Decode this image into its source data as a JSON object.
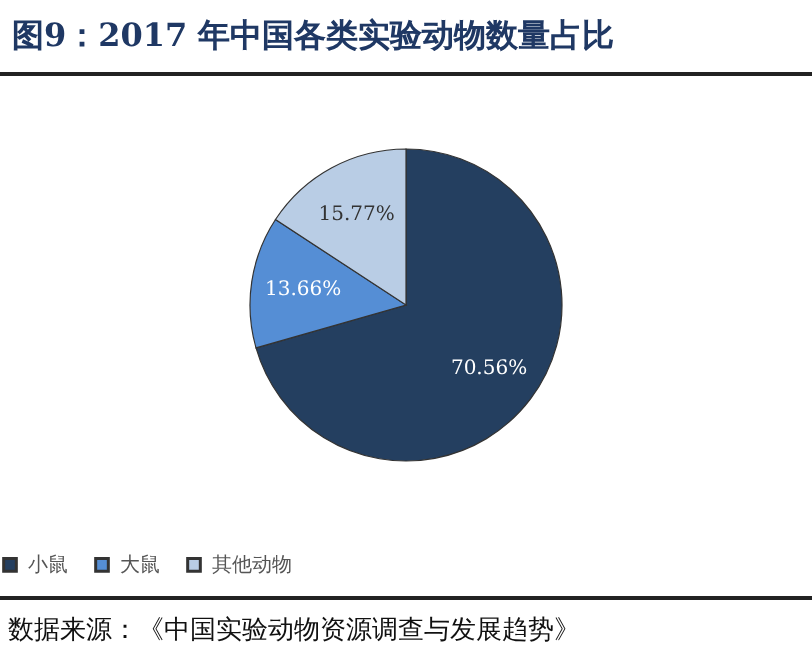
{
  "chart_data": {
    "type": "pie",
    "title": "图9：2017 年中国各类实验动物数量占比",
    "categories": [
      "小鼠",
      "大鼠",
      "其他动物"
    ],
    "values": [
      70.56,
      13.66,
      15.77
    ],
    "colors": [
      "#243f60",
      "#558ed5",
      "#b9cde5"
    ],
    "value_labels": [
      "70.56%",
      "13.66%",
      "15.77%"
    ],
    "legend": "bottom",
    "annotations": [
      "数据来源：《中国实验动物资源调查与发展趋势》"
    ]
  }
}
